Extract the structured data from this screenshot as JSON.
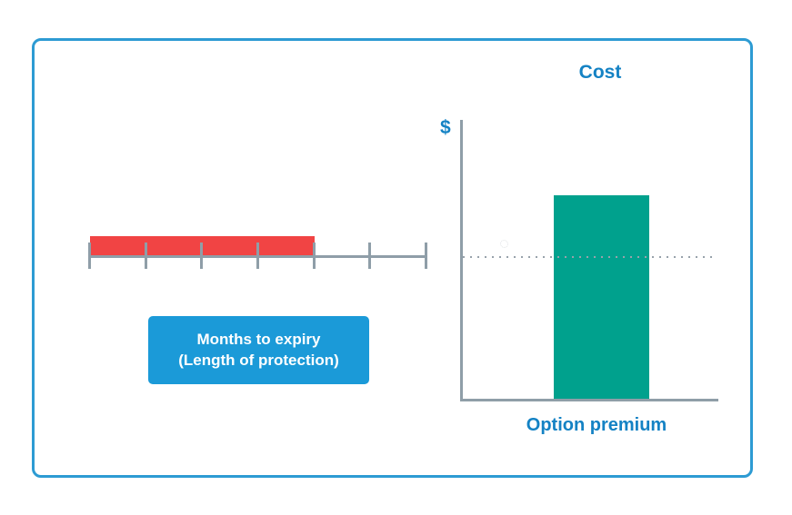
{
  "frame": {
    "border_color": "#2d9bd3"
  },
  "timeline": {
    "tick_count": 7,
    "segments_total": 6,
    "segments_filled": 4,
    "fill_color": "#f14444",
    "line_color": "#8f9ea8"
  },
  "timeline_label": {
    "line1": "Months to expiry",
    "line2": "(Length of protection)",
    "bg_color": "#1b9ad8",
    "text_color": "#ffffff"
  },
  "chart": {
    "title": "Cost",
    "y_axis_label": "$",
    "x_axis_label": "Option premium",
    "bar_color": "#00a18d",
    "axis_color": "#8f9ea8",
    "dotted_line_color": "#98a2ab",
    "text_color": "#1482c4"
  },
  "chart_data": {
    "type": "bar",
    "title": "Cost",
    "categories": [
      "Option premium"
    ],
    "values": [
      1
    ],
    "xlabel": "",
    "ylabel": "$",
    "ylim": [
      0,
      1.4
    ],
    "grid": false,
    "legend": false,
    "annotations": [
      "dotted horizontal reference line at ~0.7 of bar height crossing the bar",
      "no numeric tick labels — conceptual chart"
    ]
  }
}
